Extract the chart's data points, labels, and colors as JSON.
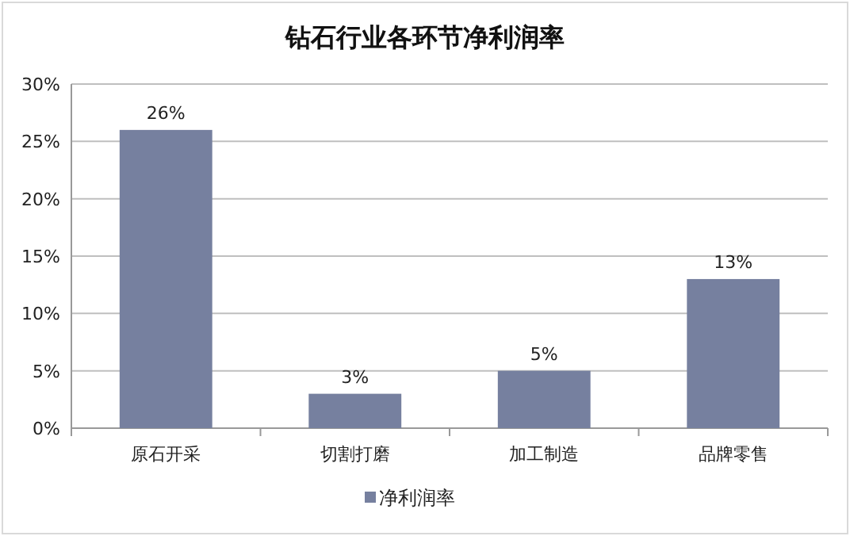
{
  "chart_data": {
    "type": "bar",
    "title": "钻石行业各环节净利润率",
    "categories": [
      "原石开采",
      "切割打磨",
      "加工制造",
      "品牌零售"
    ],
    "series": [
      {
        "name": "净利润率",
        "color": "#76809f",
        "values": [
          26,
          3,
          5,
          13
        ],
        "value_labels": [
          "26%",
          "3%",
          "5%",
          "13%"
        ]
      }
    ],
    "ylim": [
      0,
      30
    ],
    "yticks": [
      {
        "value": 0,
        "label": "0%"
      },
      {
        "value": 5,
        "label": "5%"
      },
      {
        "value": 10,
        "label": "10%"
      },
      {
        "value": 15,
        "label": "15%"
      },
      {
        "value": 20,
        "label": "20%"
      },
      {
        "value": 25,
        "label": "25%"
      },
      {
        "value": 30,
        "label": "30%"
      }
    ],
    "grid": "y",
    "legend": "bottom"
  }
}
